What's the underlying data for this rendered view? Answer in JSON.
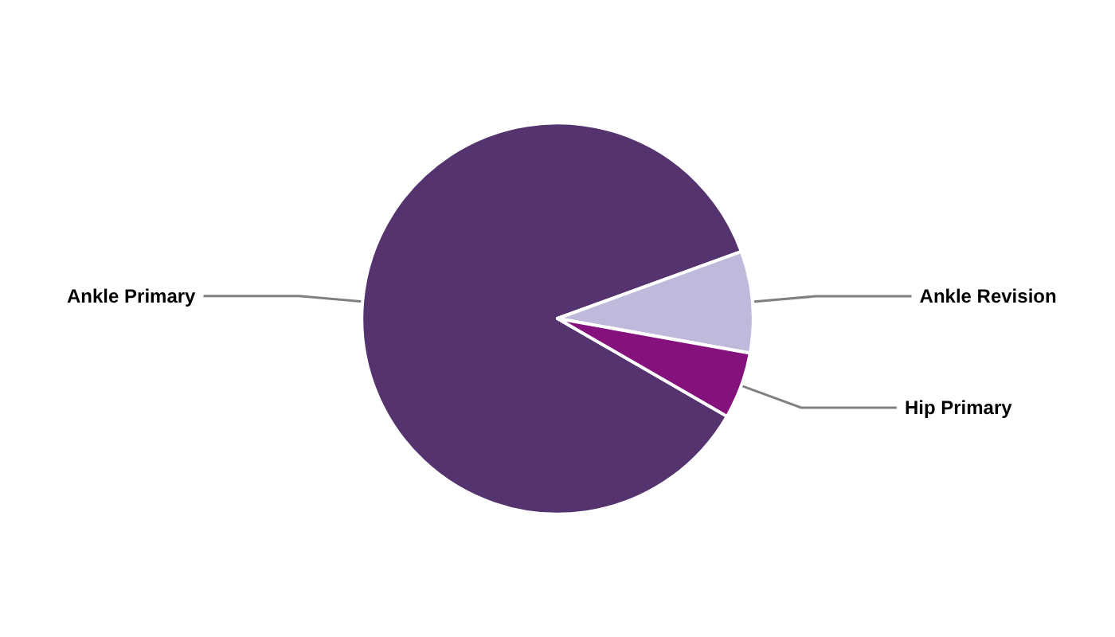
{
  "chart_data": {
    "type": "pie",
    "categories": [
      "Ankle Primary",
      "Ankle Revision",
      "Hip Primary"
    ],
    "values": [
      86.1,
      8.4,
      5.5
    ],
    "colors": [
      "#54336e",
      "#bfb9dc",
      "#85117d"
    ],
    "legend": false
  }
}
